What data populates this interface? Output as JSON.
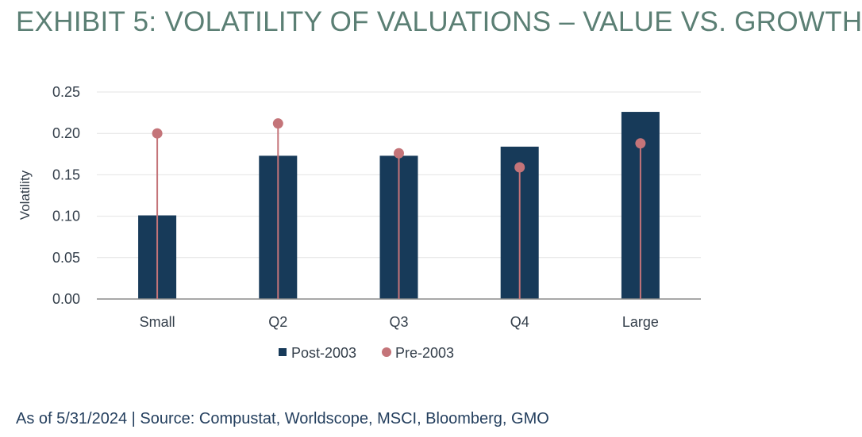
{
  "title": "EXHIBIT 5: VOLATILITY OF VALUATIONS – VALUE VS. GROWTH",
  "footer": "As of 5/31/2024 | Source: Compustat, Worldscope, MSCI, Bloomberg, GMO",
  "colors": {
    "title": "#5b7f74",
    "text": "#333e4a",
    "post2003": "#173a59",
    "pre2003": "#c47479",
    "grid": "#e3e3e3",
    "axis": "#8c8c8c",
    "footer": "#243f5e"
  },
  "chart_data": {
    "type": "bar",
    "categories": [
      "Small",
      "Q2",
      "Q3",
      "Q4",
      "Large"
    ],
    "series": [
      {
        "name": "Post-2003",
        "type": "bar",
        "values": [
          0.101,
          0.173,
          0.173,
          0.184,
          0.226
        ]
      },
      {
        "name": "Pre-2003",
        "type": "lollipop",
        "values": [
          0.2,
          0.212,
          0.176,
          0.159,
          0.188
        ]
      }
    ],
    "title": "",
    "xlabel": "",
    "ylabel": "Volatility",
    "ylim": [
      0,
      0.25
    ],
    "yticks": [
      "0.00",
      "0.05",
      "0.10",
      "0.15",
      "0.20",
      "0.25"
    ],
    "grid": true,
    "legend": "bottom-center"
  }
}
